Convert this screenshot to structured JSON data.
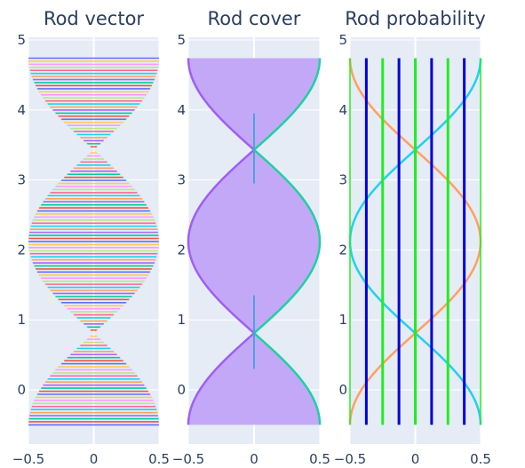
{
  "chart_data": [
    {
      "type": "line",
      "title": "Rod vector",
      "xlim": [
        -0.5,
        0.5
      ],
      "ylim": [
        -0.6,
        5.05
      ],
      "x_ticks": [
        "−0.5",
        "0",
        "0.5"
      ],
      "y_ticks": [
        "0",
        "1",
        "2",
        "3",
        "4",
        "5"
      ],
      "grid": true,
      "series_description": "fan of many thin colored line segments connecting x=0 to a sinusoidal envelope x = ±0.5·cos(π/2·(y−2.12)/1.31)... rendered as a dense rainbow pattern",
      "y_range": [
        -0.5,
        4.74
      ],
      "envelope": {
        "peak_y": [
          2.12
        ],
        "trough_y": [
          -0.5,
          4.74
        ],
        "crossing_y": [
          0.8,
          3.43
        ]
      }
    },
    {
      "type": "area",
      "title": "Rod cover",
      "xlim": [
        -0.5,
        0.5
      ],
      "ylim": [
        -0.6,
        5.05
      ],
      "x_ticks": [
        "−0.5",
        "0",
        "0.5"
      ],
      "y_ticks": [
        "0",
        "1",
        "2",
        "3",
        "4",
        "5"
      ],
      "grid": true,
      "fill_color": "#c3a8f8",
      "right_line_color": "#1fd0a0",
      "left_line_color": "#a05ef5",
      "center_line_color": "#4aa3df"
    },
    {
      "type": "line",
      "title": "Rod probability",
      "xlim": [
        -0.5,
        0.5
      ],
      "ylim": [
        -0.6,
        5.05
      ],
      "x_ticks": [
        "−0.5",
        "0",
        "0.5"
      ],
      "y_ticks": [
        "0",
        "1",
        "2",
        "3",
        "4",
        "5"
      ],
      "grid": true,
      "rod_x": [
        -0.5,
        -0.375,
        -0.25,
        -0.125,
        0,
        0.125,
        0.25,
        0.375,
        0.5
      ],
      "colors": {
        "rod_blue": "#0000e0",
        "rod_green": "#22ee22",
        "curve_cyan": "#22d0f0",
        "curve_orange": "#ffa060"
      }
    }
  ]
}
